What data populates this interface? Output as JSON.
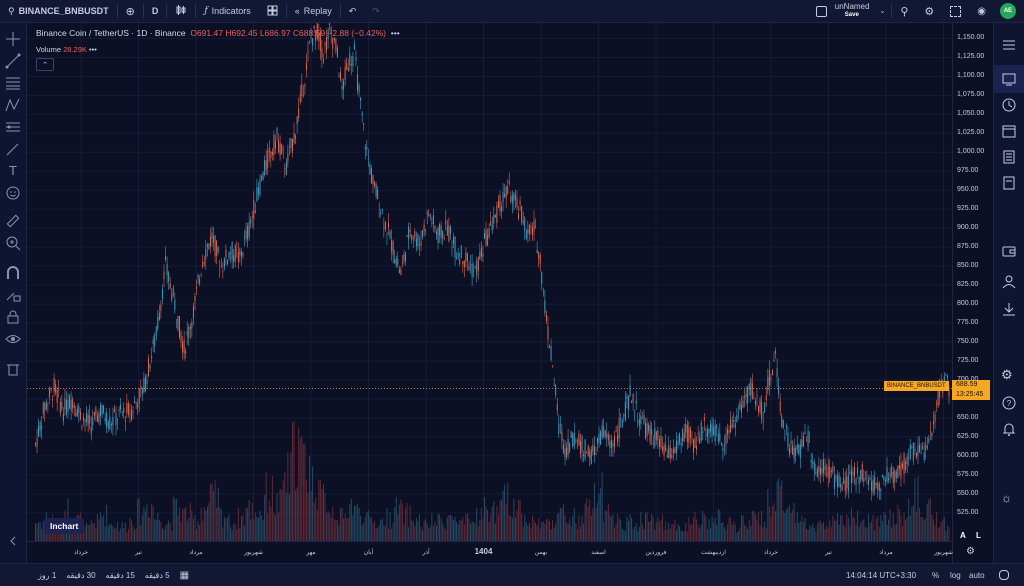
{
  "toolbar": {
    "symbol": "BINANCE_BNBUSDT",
    "interval": "D",
    "indicators_label": "Indicators",
    "replay_label": "Replay",
    "layout_name": "unNamed",
    "save_label": "Save",
    "avatar_initials": "AE"
  },
  "legend": {
    "title": "Binance Coin / TetherUS · 1D · Binance",
    "ohlc": "O691.47 H692.45 L686.97 C688.59 −2.88 (−0.42%)",
    "volume_label": "Volume",
    "volume_value": "28.29K"
  },
  "price": {
    "last": "688.59",
    "countdown": "13:25:45",
    "symbol_tag": "BINANCE_BNBUSDT"
  },
  "inchart_label": "Inchart",
  "axis_buttons": {
    "auto_scale": "A",
    "log_scale": "L"
  },
  "bottom": {
    "ranges": [
      "5 دقیقه",
      "15 دقیقه",
      "30 دقیقه",
      "1 روز"
    ],
    "time": "14:04:14 UTC+3:30",
    "percent": "%",
    "log": "log",
    "auto": "auto"
  },
  "colors": {
    "up": "#3f9fc4",
    "down": "#e0664e",
    "accent": "#f7a823",
    "background": "#0b1024"
  },
  "chart_data": {
    "type": "candlestick",
    "title": "Binance Coin / TetherUS · 1D · Binance",
    "y_ticks": [
      1150,
      1125,
      1100,
      1075,
      1050,
      1025,
      1000,
      975,
      950,
      925,
      900,
      875,
      850,
      825,
      800,
      775,
      750,
      725,
      700,
      675,
      650,
      625,
      600,
      575,
      550,
      525
    ],
    "y_tick_labels": [
      "1,150.00",
      "1,125.00",
      "1,100.00",
      "1,075.00",
      "1,050.00",
      "1,025.00",
      "1,000.00",
      "975.00",
      "950.00",
      "925.00",
      "900.00",
      "875.00",
      "850.00",
      "825.00",
      "800.00",
      "775.00",
      "750.00",
      "725.00",
      "700.00",
      "675.00",
      "650.00",
      "625.00",
      "600.00",
      "575.00",
      "550.00",
      "525.00"
    ],
    "x_tick_labels": [
      "خرداد",
      "تیر",
      "مرداد",
      "شهریور",
      "مهر",
      "آبان",
      "آذر",
      "1404",
      "بهمن",
      "اسفند",
      "فروردین",
      "اردیبهشت",
      "خرداد",
      "تیر",
      "مرداد",
      "شهریور"
    ],
    "ylim": [
      505,
      1165
    ],
    "last_price": 688.59,
    "close_path": [
      [
        0,
        615
      ],
      [
        6,
        665
      ],
      [
        12,
        690
      ],
      [
        18,
        660
      ],
      [
        24,
        675
      ],
      [
        30,
        650
      ],
      [
        36,
        640
      ],
      [
        42,
        660
      ],
      [
        48,
        645
      ],
      [
        55,
        655
      ],
      [
        62,
        660
      ],
      [
        70,
        690
      ],
      [
        78,
        760
      ],
      [
        84,
        850
      ],
      [
        90,
        800
      ],
      [
        96,
        740
      ],
      [
        102,
        790
      ],
      [
        108,
        860
      ],
      [
        114,
        890
      ],
      [
        120,
        850
      ],
      [
        126,
        870
      ],
      [
        132,
        860
      ],
      [
        138,
        900
      ],
      [
        144,
        950
      ],
      [
        150,
        990
      ],
      [
        156,
        1020
      ],
      [
        162,
        980
      ],
      [
        168,
        1030
      ],
      [
        174,
        1100
      ],
      [
        178,
        1150
      ],
      [
        182,
        1160
      ],
      [
        186,
        1130
      ],
      [
        190,
        1160
      ],
      [
        194,
        1140
      ],
      [
        198,
        1080
      ],
      [
        202,
        1120
      ],
      [
        206,
        1130
      ],
      [
        210,
        1060
      ],
      [
        214,
        1000
      ],
      [
        218,
        960
      ],
      [
        224,
        920
      ],
      [
        230,
        880
      ],
      [
        236,
        840
      ],
      [
        242,
        900
      ],
      [
        248,
        880
      ],
      [
        254,
        920
      ],
      [
        260,
        890
      ],
      [
        266,
        900
      ],
      [
        272,
        870
      ],
      [
        278,
        860
      ],
      [
        284,
        840
      ],
      [
        290,
        880
      ],
      [
        296,
        910
      ],
      [
        302,
        940
      ],
      [
        306,
        950
      ],
      [
        310,
        930
      ],
      [
        314,
        920
      ],
      [
        318,
        890
      ],
      [
        322,
        900
      ],
      [
        326,
        860
      ],
      [
        330,
        780
      ],
      [
        334,
        720
      ],
      [
        338,
        640
      ],
      [
        342,
        610
      ],
      [
        348,
        625
      ],
      [
        354,
        610
      ],
      [
        360,
        600
      ],
      [
        366,
        630
      ],
      [
        372,
        615
      ],
      [
        378,
        640
      ],
      [
        384,
        680
      ],
      [
        390,
        650
      ],
      [
        396,
        630
      ],
      [
        402,
        620
      ],
      [
        408,
        600
      ],
      [
        414,
        610
      ],
      [
        420,
        630
      ],
      [
        426,
        615
      ],
      [
        432,
        640
      ],
      [
        438,
        630
      ],
      [
        444,
        620
      ],
      [
        450,
        640
      ],
      [
        456,
        665
      ],
      [
        462,
        690
      ],
      [
        466,
        670
      ],
      [
        470,
        660
      ],
      [
        474,
        700
      ],
      [
        478,
        730
      ],
      [
        482,
        650
      ],
      [
        486,
        620
      ],
      [
        490,
        600
      ],
      [
        494,
        610
      ],
      [
        498,
        630
      ],
      [
        504,
        580
      ],
      [
        510,
        590
      ],
      [
        516,
        570
      ],
      [
        522,
        560
      ],
      [
        528,
        570
      ],
      [
        534,
        580
      ],
      [
        540,
        560
      ],
      [
        546,
        565
      ],
      [
        552,
        575
      ],
      [
        558,
        580
      ],
      [
        564,
        600
      ],
      [
        570,
        610
      ],
      [
        576,
        605
      ],
      [
        580,
        640
      ],
      [
        584,
        690
      ],
      [
        588,
        700
      ],
      [
        590,
        690
      ]
    ],
    "volume_path": [
      0.18,
      0.22,
      0.15,
      0.3,
      0.2,
      0.12,
      0.18,
      0.25,
      0.16,
      0.14,
      0.2,
      0.28,
      0.35,
      0.22,
      0.18,
      0.3,
      0.26,
      0.2,
      0.32,
      0.4,
      0.25,
      0.18,
      0.22,
      0.3,
      0.28,
      0.45,
      0.35,
      0.6,
      0.9,
      0.75,
      0.55,
      0.4,
      0.3,
      0.22,
      0.35,
      0.28,
      0.2,
      0.18,
      0.22,
      0.3,
      0.25,
      0.2,
      0.15,
      0.18,
      0.2,
      0.22,
      0.16,
      0.18,
      0.25,
      0.3,
      0.28,
      0.4,
      0.35,
      0.22,
      0.18,
      0.16,
      0.2,
      0.25,
      0.22,
      0.18,
      0.3,
      0.45,
      0.25,
      0.2,
      0.18,
      0.16,
      0.22,
      0.2,
      0.18,
      0.15,
      0.14,
      0.16,
      0.2,
      0.18,
      0.22,
      0.16,
      0.14,
      0.18,
      0.2,
      0.22,
      0.35,
      0.5,
      0.28,
      0.2,
      0.18,
      0.16,
      0.15,
      0.2,
      0.18,
      0.22,
      0.16,
      0.18,
      0.2,
      0.22,
      0.25,
      0.3,
      0.42,
      0.28,
      0.2,
      0.18
    ]
  }
}
